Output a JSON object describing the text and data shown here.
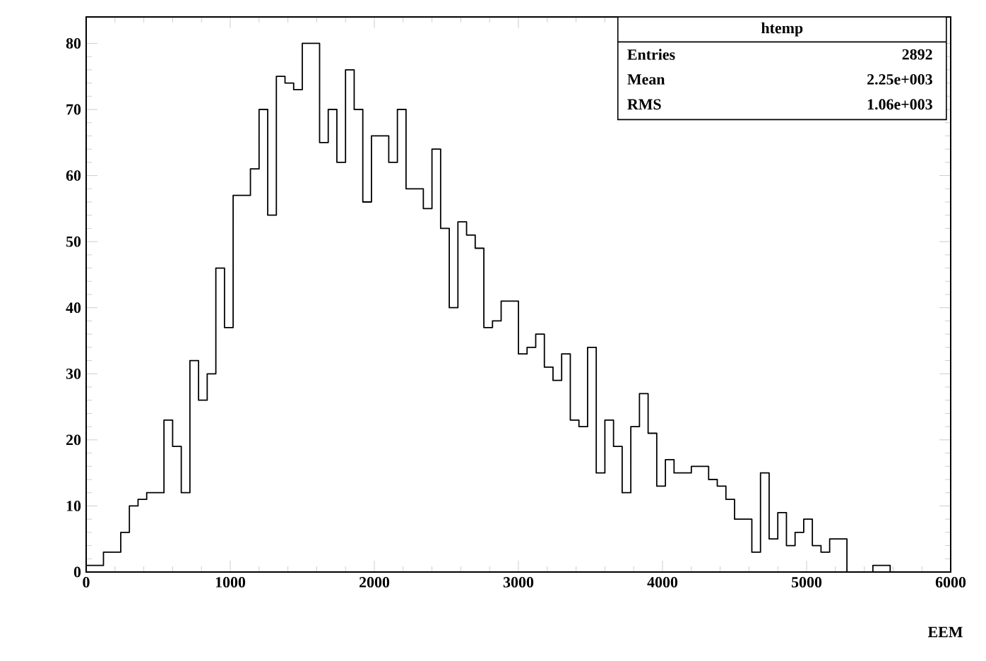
{
  "chart_data": {
    "type": "histogram",
    "xlabel": "EEM",
    "bins": [
      0,
      60,
      120,
      180,
      240,
      300,
      360,
      420,
      480,
      540,
      600,
      660,
      720,
      780,
      840,
      900,
      960,
      1020,
      1080,
      1140,
      1200,
      1260,
      1320,
      1380,
      1440,
      1500,
      1560,
      1620,
      1680,
      1740,
      1800,
      1860,
      1920,
      1980,
      2040,
      2100,
      2160,
      2220,
      2280,
      2340,
      2400,
      2460,
      2520,
      2580,
      2640,
      2700,
      2760,
      2820,
      2880,
      2940,
      3000,
      3060,
      3120,
      3180,
      3240,
      3300,
      3360,
      3420,
      3480,
      3540,
      3600,
      3660,
      3720,
      3780,
      3840,
      3900,
      3960,
      4020,
      4080,
      4140,
      4200,
      4260,
      4320,
      4380,
      4440,
      4500,
      4560,
      4620,
      4680,
      4740,
      4800,
      4860,
      4920,
      4980,
      5040,
      5100,
      5160,
      5220,
      5280,
      5340,
      5400,
      5460,
      5520,
      5580,
      5640,
      5700,
      5760,
      5820,
      5880,
      5940,
      6000
    ],
    "values": [
      1,
      1,
      3,
      3,
      6,
      10,
      11,
      12,
      12,
      23,
      19,
      12,
      32,
      26,
      30,
      46,
      37,
      57,
      57,
      61,
      70,
      54,
      75,
      74,
      73,
      80,
      80,
      65,
      70,
      62,
      76,
      70,
      56,
      66,
      66,
      62,
      70,
      58,
      58,
      55,
      64,
      52,
      40,
      53,
      51,
      49,
      37,
      38,
      41,
      41,
      33,
      34,
      36,
      31,
      29,
      33,
      23,
      22,
      34,
      15,
      23,
      19,
      12,
      22,
      27,
      21,
      13,
      17,
      15,
      15,
      16,
      16,
      14,
      13,
      11,
      8,
      8,
      3,
      15,
      5,
      9,
      4,
      6,
      8,
      4,
      3,
      5,
      5,
      0,
      0,
      0,
      1,
      1,
      0,
      0,
      0,
      0,
      0,
      0,
      0
    ],
    "color": "#000000",
    "xlim": [
      0,
      6000
    ],
    "ylim": [
      0,
      84
    ],
    "xticks": [
      0,
      1000,
      2000,
      3000,
      4000,
      5000,
      6000
    ],
    "yticks": [
      0,
      10,
      20,
      30,
      40,
      50,
      60,
      70,
      80
    ],
    "grid": false,
    "annotations": [
      "htemp",
      "Entries",
      "2892",
      "Mean",
      "2.25e+003",
      "RMS",
      "1.06e+003"
    ]
  }
}
